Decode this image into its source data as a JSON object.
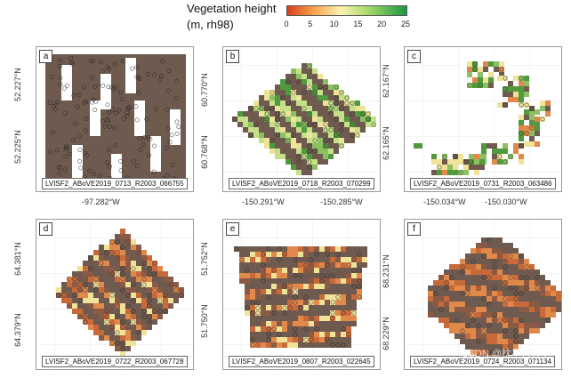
{
  "legend": {
    "title_line1": "Vegetation height",
    "title_line2": "(m, rh98)",
    "ticks": [
      "0",
      "5",
      "10",
      "15",
      "20",
      "25"
    ],
    "colors": [
      "#d93e1c",
      "#f6a24a",
      "#fbf3b0",
      "#a6d96a",
      "#1a9641"
    ]
  },
  "panels": [
    {
      "id": "a",
      "label": "a",
      "caption": "LVISF2_ABoVE2019_0713_R2003_066755",
      "y_labels": [
        "52.227°N",
        "52.225°N"
      ],
      "x_labels": [
        "-97.282°W"
      ],
      "dominant_color": "#6e5a4e"
    },
    {
      "id": "b",
      "label": "b",
      "caption": "LVISF2_ABoVE2019_0718_R2003_070299",
      "y_labels": [
        "60.770°N",
        "60.768°N"
      ],
      "x_labels": [
        "-150.291°W",
        "-150.285°W"
      ],
      "dominant_color": "#b8d67a"
    },
    {
      "id": "c",
      "label": "c",
      "caption": "LVISF2_ABoVE2019_0731_R2003_063486",
      "y_labels": [
        "62.167°N",
        "62.165°N"
      ],
      "x_labels": [
        "-150.034°W",
        "-150.030°W"
      ],
      "dominant_color": "#5a9a3a"
    },
    {
      "id": "d",
      "label": "d",
      "caption": "LVISF2_ABoVE2019_0722_R2003_067728",
      "y_labels": [
        "64.381°N",
        "64.379°N"
      ],
      "x_labels": [],
      "dominant_color": "#b86a3a"
    },
    {
      "id": "e",
      "label": "e",
      "caption": "LVISF2_ABoVE2019_0807_R2003_022645",
      "y_labels": [
        "51.752°N",
        "51.750°N"
      ],
      "x_labels": [],
      "dominant_color": "#c0703a"
    },
    {
      "id": "f",
      "label": "f",
      "caption": "LVISF2_ABoVE2019_0724_R2003_071134",
      "y_labels": [
        "68.231°N",
        "68.229°N"
      ],
      "x_labels": [],
      "dominant_color": "#a0603e"
    }
  ],
  "watermark": "CSDN @枕星人火明"
}
